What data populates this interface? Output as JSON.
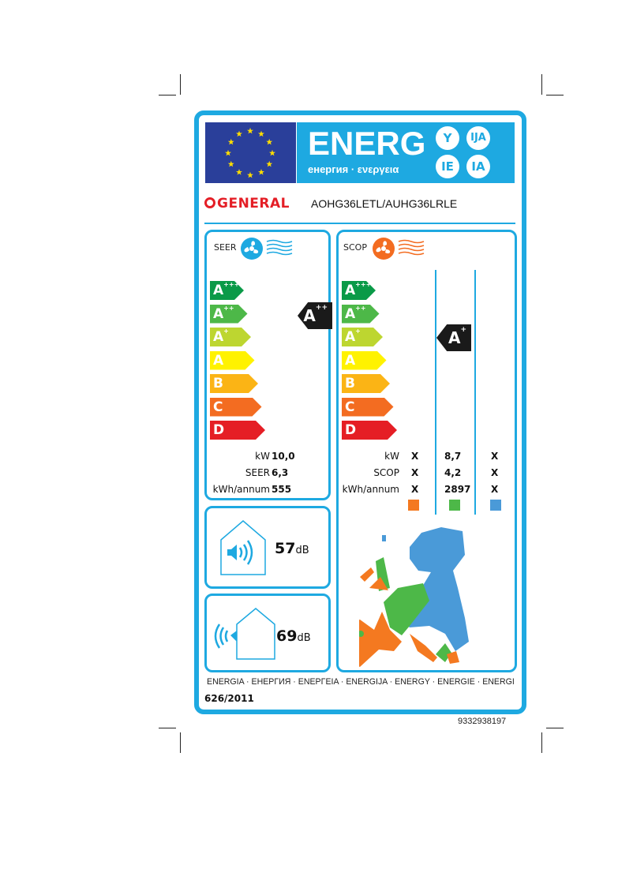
{
  "header": {
    "energy_title": "ENERG",
    "energy_subtitle": "енергия · ενεργεια",
    "suffixes": [
      "Y",
      "IJA",
      "IE",
      "IA"
    ]
  },
  "brand": {
    "logo_text": "GENERAL",
    "model": "AOHG36LETL/AUHG36LRLE"
  },
  "classes": [
    "A",
    "A",
    "A",
    "A",
    "B",
    "C",
    "D"
  ],
  "class_plus": [
    "+++",
    "++",
    "+",
    "",
    "",
    "",
    ""
  ],
  "class_colors": [
    "#0a9a48",
    "#4db848",
    "#bdd630",
    "#fff200",
    "#fbb415",
    "#f36c21",
    "#e51e25"
  ],
  "cooling": {
    "label": "SEER",
    "rating": "A",
    "rating_plus": "++",
    "rows": [
      {
        "label": "kW",
        "value": "10,0"
      },
      {
        "label": "SEER",
        "value": "6,3"
      },
      {
        "label": "kWh/annum",
        "value": "555"
      }
    ]
  },
  "heating": {
    "label": "SCOP",
    "rating": "A",
    "rating_plus": "+",
    "rows": [
      {
        "label": "kW",
        "values": [
          "X",
          "8,7",
          "X"
        ]
      },
      {
        "label": "SCOP",
        "values": [
          "X",
          "4,2",
          "X"
        ]
      },
      {
        "label": "kWh/annum",
        "values": [
          "X",
          "2897",
          "X"
        ]
      }
    ],
    "zone_colors": [
      "#f47920",
      "#4db848",
      "#4a9ad8"
    ]
  },
  "noise": {
    "indoor": {
      "value": "57",
      "unit": "dB"
    },
    "outdoor": {
      "value": "69",
      "unit": "dB"
    }
  },
  "footer": {
    "languages": "ENERGIA · ЕНЕРГИЯ · ΕΝΕΡΓΕΙΑ · ENERGIJA · ENERGY · ENERGIE · ENERGI",
    "regulation": "626/2011"
  },
  "serial": "9332938197",
  "colors": {
    "accent": "#1ea9e1",
    "flag": "#2a3f9a",
    "star": "#ffdd00",
    "brand": "#e41e26"
  }
}
